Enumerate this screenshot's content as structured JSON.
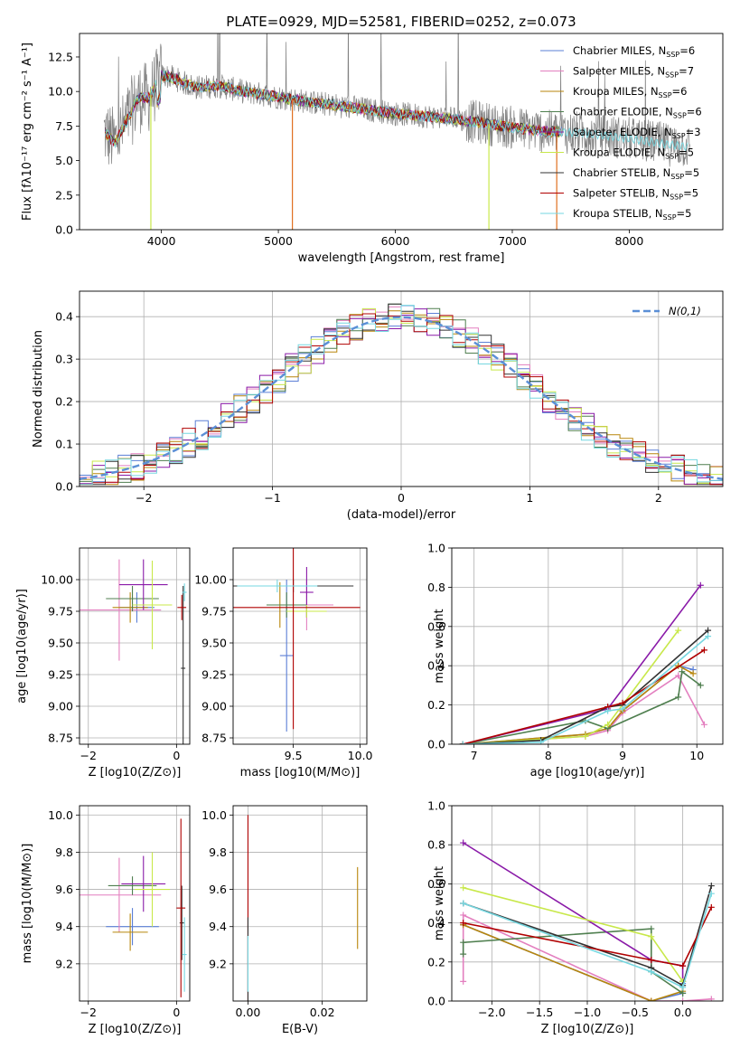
{
  "figure": {
    "title": "PLATE=0929, MJD=52581, FIBERID=0252, z=0.073"
  },
  "colors": {
    "Chabrier MILES": "#5b7fd6",
    "Salpeter MILES": "#e37fbf",
    "Kroupa MILES": "#b8860b",
    "Chabrier ELODIE": "#4f7f4f",
    "Salpeter ELODIE": "#8a1aa8",
    "Kroupa ELODIE": "#c8e84a",
    "Chabrier STELIB": "#333333",
    "Salpeter STELIB": "#b00000",
    "Kroupa STELIB": "#76d7e0",
    "spectrum": "#808080",
    "gauss": "#5b8fd6",
    "model_orange": "#e07020"
  },
  "chart_data": [
    {
      "id": "spectrum",
      "type": "line",
      "xlabel": "wavelength [Angstrom, rest frame]",
      "ylabel": "Flux [fλ10⁻¹⁷ erg cm⁻² s⁻¹ A⁻¹]",
      "xlim": [
        3300,
        8800
      ],
      "ylim": [
        0,
        14.2
      ],
      "xticks": [
        4000,
        5000,
        6000,
        7000,
        8000
      ],
      "yticks": [
        0.0,
        2.5,
        5.0,
        7.5,
        10.0,
        12.5
      ],
      "grid": false,
      "legend_position": "top-right",
      "data_continuum": {
        "x": [
          3500,
          3600,
          3700,
          3800,
          3900,
          4000,
          4100,
          4200,
          4300,
          4500,
          4700,
          5000,
          5300,
          5600,
          6000,
          6300,
          6600,
          7000,
          7300,
          7600,
          8000,
          8300,
          8500
        ],
        "y": [
          7.2,
          6.3,
          7.8,
          9.5,
          9.6,
          11.2,
          11.0,
          10.6,
          10.3,
          10.4,
          10.0,
          9.6,
          9.2,
          8.9,
          8.4,
          8.2,
          7.9,
          7.4,
          7.1,
          7.0,
          6.6,
          6.2,
          6.0
        ]
      },
      "series": [
        {
          "name": "Chabrier MILES, N_SSP=6",
          "label_main": "Chabrier MILES, N",
          "label_sub": "SSP",
          "label_tail": "=6"
        },
        {
          "name": "Salpeter MILES, N_SSP=7",
          "label_main": "Salpeter MILES, N",
          "label_sub": "SSP",
          "label_tail": "=7"
        },
        {
          "name": "Kroupa MILES, N_SSP=6",
          "label_main": "Kroupa MILES, N",
          "label_sub": "SSP",
          "label_tail": "=6"
        },
        {
          "name": "Chabrier ELODIE, N_SSP=6",
          "label_main": "Chabrier ELODIE, N",
          "label_sub": "SSP",
          "label_tail": "=6"
        },
        {
          "name": "Salpeter ELODIE, N_SSP=3",
          "label_main": "Salpeter ELODIE, N",
          "label_sub": "SSP",
          "label_tail": "=3"
        },
        {
          "name": "Kroupa ELODIE, N_SSP=5",
          "label_main": "Kroupa ELODIE, N",
          "label_sub": "SSP",
          "label_tail": "=5"
        },
        {
          "name": "Chabrier STELIB, N_SSP=5",
          "label_main": "Chabrier STELIB, N",
          "label_sub": "SSP",
          "label_tail": "=5"
        },
        {
          "name": "Salpeter STELIB, N_SSP=5",
          "label_main": "Salpeter STELIB, N",
          "label_sub": "SSP",
          "label_tail": "=5"
        },
        {
          "name": "Kroupa STELIB, N_SSP=5",
          "label_main": "Kroupa STELIB, N",
          "label_sub": "SSP",
          "label_tail": "=5"
        }
      ]
    },
    {
      "id": "residuals",
      "type": "line",
      "xlabel": "(data-model)/error",
      "ylabel": "Normed distribution",
      "xlim": [
        -2.5,
        2.5
      ],
      "ylim": [
        0,
        0.46
      ],
      "xticks": [
        -2,
        -1,
        0,
        1,
        2
      ],
      "yticks": [
        0.0,
        0.1,
        0.2,
        0.3,
        0.4
      ],
      "grid": true,
      "legend_position": "top-right",
      "legend": "N(0,1)",
      "bin_width": 0.1
    },
    {
      "id": "age_vs_Z",
      "type": "scatter",
      "xlabel": "Z [log10(Z/Z⊙)]",
      "ylabel": "age  [log10(age/yr)]",
      "xlim": [
        -2.2,
        0.3
      ],
      "ylim": [
        8.7,
        10.25
      ],
      "xticks": [
        -2,
        0
      ],
      "yticks": [
        8.75,
        9.0,
        9.25,
        9.5,
        9.75,
        10.0
      ],
      "grid": true,
      "points": [
        {
          "series": "Chabrier MILES",
          "x": -0.9,
          "y": 9.78,
          "xerr": 0.4,
          "yerr": 0.12
        },
        {
          "series": "Salpeter MILES",
          "x": -1.3,
          "y": 9.76,
          "xerr": 0.95,
          "yerr": 0.4
        },
        {
          "series": "Kroupa MILES",
          "x": -1.05,
          "y": 9.78,
          "xerr": 0.4,
          "yerr": 0.12
        },
        {
          "series": "Chabrier ELODIE",
          "x": -1.0,
          "y": 9.85,
          "xerr": 0.6,
          "yerr": 0.1
        },
        {
          "series": "Salpeter ELODIE",
          "x": -0.75,
          "y": 9.96,
          "xerr": 0.55,
          "yerr": 0.2
        },
        {
          "series": "Kroupa ELODIE",
          "x": -0.55,
          "y": 9.8,
          "xerr": 0.45,
          "yerr": 0.35
        },
        {
          "series": "Chabrier STELIB",
          "x": 0.15,
          "y": 9.3,
          "xerr": 0.05,
          "yerr": 0.65
        },
        {
          "series": "Salpeter STELIB",
          "x": 0.12,
          "y": 9.78,
          "xerr": 0.1,
          "yerr": 0.1
        },
        {
          "series": "Kroupa STELIB",
          "x": 0.18,
          "y": 9.9,
          "xerr": 0.05,
          "yerr": 0.07
        }
      ]
    },
    {
      "id": "age_vs_mass",
      "type": "scatter",
      "xlabel": "mass [log10(M/M⊙)]",
      "ylabel": "",
      "xlim": [
        9.05,
        10.05
      ],
      "ylim": [
        8.7,
        10.25
      ],
      "xticks": [
        9.5,
        10.0
      ],
      "yticks": [
        8.75,
        9.0,
        9.25,
        9.5,
        9.75,
        10.0
      ],
      "grid": true,
      "points": [
        {
          "series": "Chabrier MILES",
          "x": 9.45,
          "y": 9.4,
          "xerr": 0.05,
          "yerr": 0.6
        },
        {
          "series": "Salpeter MILES",
          "x": 9.6,
          "y": 9.8,
          "xerr": 0.2,
          "yerr": 0.2
        },
        {
          "series": "Kroupa MILES",
          "x": 9.4,
          "y": 9.8,
          "xerr": 0.1,
          "yerr": 0.18
        },
        {
          "series": "Chabrier ELODIE",
          "x": 9.45,
          "y": 9.8,
          "xerr": 0.15,
          "yerr": 0.1
        },
        {
          "series": "Salpeter ELODIE",
          "x": 9.6,
          "y": 9.9,
          "xerr": 0.05,
          "yerr": 0.2
        },
        {
          "series": "Kroupa ELODIE",
          "x": 9.6,
          "y": 9.75,
          "xerr": 0.15,
          "yerr": 0.05
        },
        {
          "series": "Chabrier STELIB",
          "x": 9.5,
          "y": 9.95,
          "xerr": 0.45,
          "yerr": 0.05
        },
        {
          "series": "Salpeter STELIB",
          "x": 9.5,
          "y": 9.78,
          "xerr": 0.5,
          "yerr": 0.96
        },
        {
          "series": "Kroupa STELIB",
          "x": 9.38,
          "y": 9.95,
          "xerr": 0.3,
          "yerr": 0.05
        }
      ]
    },
    {
      "id": "weight_vs_age",
      "type": "line",
      "xlabel": "age  [log10(age/yr)]",
      "ylabel": "mass weight",
      "xlim": [
        6.7,
        10.35
      ],
      "ylim": [
        0,
        1.0
      ],
      "xticks": [
        7,
        8,
        9,
        10
      ],
      "yticks": [
        0.0,
        0.2,
        0.4,
        0.6,
        0.8,
        1.0
      ],
      "grid": true,
      "series": [
        {
          "name": "Chabrier MILES",
          "x": [
            6.85,
            8.5,
            8.8,
            9.0,
            9.75,
            9.95
          ],
          "y": [
            0.0,
            0.05,
            0.08,
            0.17,
            0.4,
            0.38
          ]
        },
        {
          "name": "Salpeter MILES",
          "x": [
            6.85,
            8.5,
            8.8,
            9.0,
            9.75,
            10.1
          ],
          "y": [
            0.0,
            0.04,
            0.07,
            0.16,
            0.35,
            0.1
          ]
        },
        {
          "name": "Kroupa MILES",
          "x": [
            6.85,
            8.5,
            8.8,
            9.0,
            9.75,
            9.95
          ],
          "y": [
            0.0,
            0.05,
            0.08,
            0.17,
            0.4,
            0.36
          ]
        },
        {
          "name": "Chabrier ELODIE",
          "x": [
            6.85,
            8.5,
            8.8,
            9.75,
            9.8,
            10.05
          ],
          "y": [
            0.0,
            0.12,
            0.08,
            0.24,
            0.37,
            0.3
          ]
        },
        {
          "name": "Salpeter ELODIE",
          "x": [
            6.85,
            8.8,
            10.05
          ],
          "y": [
            0.0,
            0.18,
            0.81
          ]
        },
        {
          "name": "Kroupa ELODIE",
          "x": [
            6.85,
            8.5,
            8.8,
            9.75
          ],
          "y": [
            0.0,
            0.04,
            0.1,
            0.58
          ]
        },
        {
          "name": "Chabrier STELIB",
          "x": [
            6.85,
            7.9,
            8.8,
            9.0,
            10.15
          ],
          "y": [
            0.0,
            0.02,
            0.19,
            0.2,
            0.58
          ]
        },
        {
          "name": "Salpeter STELIB",
          "x": [
            6.85,
            8.8,
            9.0,
            10.1
          ],
          "y": [
            0.0,
            0.19,
            0.21,
            0.48
          ]
        },
        {
          "name": "Kroupa STELIB",
          "x": [
            6.85,
            7.9,
            8.8,
            9.0,
            10.15
          ],
          "y": [
            0.0,
            0.01,
            0.17,
            0.18,
            0.55
          ]
        }
      ]
    },
    {
      "id": "mass_vs_Z",
      "type": "scatter",
      "xlabel": "Z [log10(Z/Z⊙)]",
      "ylabel": "mass [log10(M/M⊙)]",
      "xlim": [
        -2.2,
        0.3
      ],
      "ylim": [
        9.0,
        10.05
      ],
      "xticks": [
        -2,
        0
      ],
      "yticks": [
        9.2,
        9.4,
        9.6,
        9.8,
        10.0
      ],
      "grid": true,
      "points": [
        {
          "series": "Chabrier MILES",
          "x": -1.0,
          "y": 9.4,
          "xerr": 0.6,
          "yerr": 0.1
        },
        {
          "series": "Salpeter MILES",
          "x": -1.3,
          "y": 9.57,
          "xerr": 0.95,
          "yerr": 0.2
        },
        {
          "series": "Kroupa MILES",
          "x": -1.05,
          "y": 9.37,
          "xerr": 0.4,
          "yerr": 0.1
        },
        {
          "series": "Chabrier ELODIE",
          "x": -1.0,
          "y": 9.62,
          "xerr": 0.55,
          "yerr": 0.05
        },
        {
          "series": "Salpeter ELODIE",
          "x": -0.75,
          "y": 9.63,
          "xerr": 0.5,
          "yerr": 0.15
        },
        {
          "series": "Kroupa ELODIE",
          "x": -0.55,
          "y": 9.6,
          "xerr": 0.4,
          "yerr": 0.2
        },
        {
          "series": "Chabrier STELIB",
          "x": 0.12,
          "y": 9.42,
          "xerr": 0.05,
          "yerr": 0.2
        },
        {
          "series": "Salpeter STELIB",
          "x": 0.1,
          "y": 9.5,
          "xerr": 0.1,
          "yerr": 0.48
        },
        {
          "series": "Kroupa STELIB",
          "x": 0.18,
          "y": 9.25,
          "xerr": 0.05,
          "yerr": 0.2
        }
      ]
    },
    {
      "id": "mass_vs_EBV",
      "type": "scatter",
      "xlabel": "E(B-V)",
      "ylabel": "",
      "xlim": [
        -0.004,
        0.032
      ],
      "ylim": [
        9.0,
        10.05
      ],
      "xticks": [
        0.0,
        0.02
      ],
      "yticks": [
        9.2,
        9.4,
        9.6,
        9.8,
        10.0
      ],
      "grid": true,
      "points": [
        {
          "series": "Salpeter STELIB",
          "x": 0.0,
          "y": 9.5,
          "xerr": 0.0,
          "yerr": 0.5
        },
        {
          "series": "Chabrier STELIB",
          "x": 0.0,
          "y": 9.2,
          "xerr": 0.0,
          "yerr": 0.25
        },
        {
          "series": "Kroupa STELIB",
          "x": 0.0,
          "y": 9.2,
          "xerr": 0.0,
          "yerr": 0.15
        },
        {
          "series": "Kroupa MILES",
          "x": 0.0295,
          "y": 9.5,
          "xerr": 0.0,
          "yerr": 0.22
        }
      ]
    },
    {
      "id": "weight_vs_Z",
      "type": "line",
      "xlabel": "Z [log10(Z/Z⊙)]",
      "ylabel": "mass weight",
      "xlim": [
        -2.42,
        0.42
      ],
      "ylim": [
        0,
        1.0
      ],
      "xticks": [
        -2.0,
        -1.5,
        -1.0,
        -0.5,
        0.0
      ],
      "yticks": [
        0.0,
        0.2,
        0.4,
        0.6,
        0.8,
        1.0
      ],
      "grid": true,
      "series": [
        {
          "name": "Chabrier MILES",
          "x": [
            -2.3,
            -0.33,
            0.0,
            0.0
          ],
          "y": [
            0.39,
            0.0,
            0.04,
            0.09
          ]
        },
        {
          "name": "Salpeter MILES",
          "x": [
            -2.3,
            -2.3,
            -0.33,
            0.0,
            0.3
          ],
          "y": [
            0.1,
            0.44,
            0.0,
            0.0,
            0.01
          ]
        },
        {
          "name": "Kroupa MILES",
          "x": [
            -2.3,
            -0.33,
            0.0,
            0.0
          ],
          "y": [
            0.39,
            0.0,
            0.05,
            0.1
          ]
        },
        {
          "name": "Chabrier ELODIE",
          "x": [
            -2.3,
            -2.3,
            -0.33,
            -0.33,
            0.0
          ],
          "y": [
            0.24,
            0.3,
            0.37,
            0.15,
            0.04
          ]
        },
        {
          "name": "Salpeter ELODIE",
          "x": [
            -2.3,
            -0.33,
            0.0,
            0.0
          ],
          "y": [
            0.81,
            0.21,
            0.18,
            0.1
          ]
        },
        {
          "name": "Kroupa ELODIE",
          "x": [
            -2.3,
            -0.33,
            0.0
          ],
          "y": [
            0.58,
            0.33,
            0.1
          ]
        },
        {
          "name": "Chabrier STELIB",
          "x": [
            -2.3,
            -0.33,
            0.0,
            0.3
          ],
          "y": [
            0.5,
            0.17,
            0.08,
            0.59
          ]
        },
        {
          "name": "Salpeter STELIB",
          "x": [
            -2.3,
            -0.33,
            0.0,
            0.3
          ],
          "y": [
            0.4,
            0.21,
            0.18,
            0.48
          ]
        },
        {
          "name": "Kroupa STELIB",
          "x": [
            -2.3,
            -0.33,
            0.0,
            0.3
          ],
          "y": [
            0.5,
            0.15,
            0.07,
            0.55
          ]
        }
      ]
    }
  ]
}
